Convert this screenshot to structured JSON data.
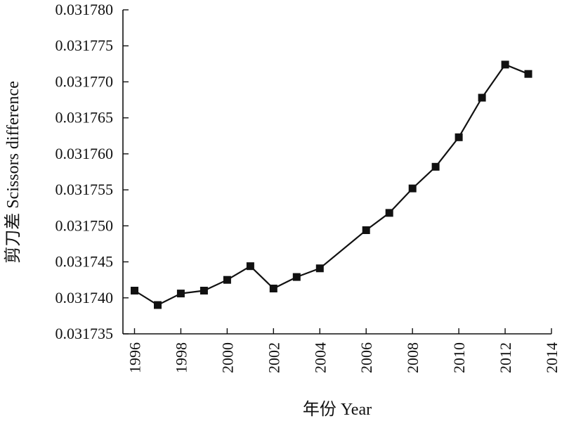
{
  "chart_data": {
    "type": "line",
    "title": "",
    "xlabel": "年份 Year",
    "ylabel": "剪刀差 Scissors difference",
    "xlim": [
      1995.5,
      2014
    ],
    "ylim": [
      0.031735,
      0.03178
    ],
    "x_ticks": [
      "1996",
      "1998",
      "2000",
      "2002",
      "2004",
      "2006",
      "2008",
      "2010",
      "2012",
      "2014"
    ],
    "y_ticks": [
      "0.031735",
      "0.031740",
      "0.031745",
      "0.031750",
      "0.031755",
      "0.031760",
      "0.031765",
      "0.031770",
      "0.031775",
      "0.031780"
    ],
    "grid": false,
    "series": [
      {
        "marker": "square",
        "color": "#111111",
        "x": [
          1996,
          1997,
          1998,
          1999,
          2000,
          2001,
          2002,
          2003,
          2004,
          2006,
          2007,
          2008,
          2009,
          2010,
          2011,
          2012,
          2013
        ],
        "y": [
          0.031741,
          0.031739,
          0.0317406,
          0.031741,
          0.0317425,
          0.0317444,
          0.0317413,
          0.0317429,
          0.0317441,
          0.0317494,
          0.0317518,
          0.0317552,
          0.0317582,
          0.0317623,
          0.0317678,
          0.0317724,
          0.0317711
        ]
      }
    ]
  }
}
